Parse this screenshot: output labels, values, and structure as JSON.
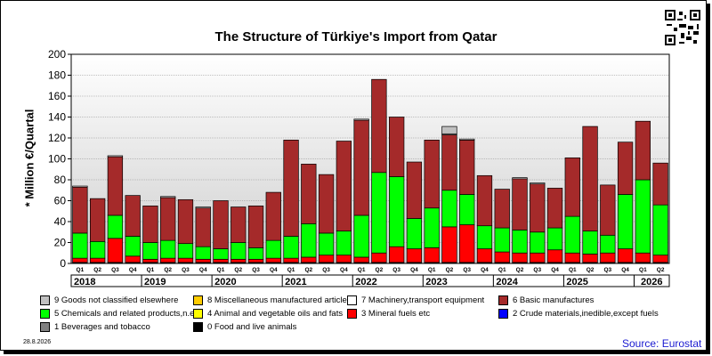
{
  "page": {
    "title": "The Structure of Türkiye's Import from Qatar",
    "date": "28.8.2026",
    "source": "Source: Eurostat"
  },
  "chart_data": {
    "type": "bar",
    "stacked": true,
    "title": "The Structure of Türkiye's Import from Qatar",
    "ylabel": "* Million €/Quartal",
    "xlabel": "",
    "ylim": [
      0,
      200
    ],
    "yticks": [
      0,
      20,
      40,
      60,
      80,
      100,
      120,
      140,
      160,
      180,
      200
    ],
    "grid": true,
    "legend_position": "bottom",
    "categories": [
      "Q1",
      "Q2",
      "Q3",
      "Q4",
      "Q1",
      "Q2",
      "Q3",
      "Q4",
      "Q1",
      "Q2",
      "Q3",
      "Q4",
      "Q1",
      "Q2",
      "Q3",
      "Q4",
      "Q1",
      "Q2",
      "Q3",
      "Q4",
      "Q1",
      "Q2",
      "Q3",
      "Q4",
      "Q1",
      "Q2",
      "Q3",
      "Q4",
      "Q1",
      "Q2",
      "Q3",
      "Q4",
      "Q1",
      "Q2"
    ],
    "years": [
      {
        "label": "2018",
        "quarters": 4
      },
      {
        "label": "2019",
        "quarters": 4
      },
      {
        "label": "2020",
        "quarters": 4
      },
      {
        "label": "2021",
        "quarters": 4
      },
      {
        "label": "2022",
        "quarters": 4
      },
      {
        "label": "2023",
        "quarters": 4
      },
      {
        "label": "2024",
        "quarters": 4
      },
      {
        "label": "2025",
        "quarters": 4
      },
      {
        "label": "2026",
        "quarters": 2
      }
    ],
    "series": [
      {
        "name": "0 Food and live animals",
        "color": "#000000",
        "values": [
          1,
          1,
          1,
          1,
          1,
          1,
          1,
          1,
          1,
          1,
          1,
          1,
          1,
          1,
          1,
          1,
          1,
          1,
          1,
          1,
          1,
          1,
          1,
          1,
          1,
          1,
          1,
          1,
          1,
          1,
          1,
          1,
          1,
          1
        ]
      },
      {
        "name": "1 Beverages and tobacco",
        "color": "#808080",
        "values": [
          0,
          0,
          0,
          0,
          0,
          0,
          0,
          0,
          0,
          0,
          0,
          0,
          0,
          0,
          0,
          0,
          0,
          0,
          0,
          0,
          0,
          0,
          0,
          0,
          0,
          0,
          0,
          0,
          0,
          0,
          0,
          0,
          0,
          0
        ]
      },
      {
        "name": "2 Crude materials,inedible,except fuels",
        "color": "#0000ff",
        "values": [
          0,
          0,
          0,
          0,
          0,
          0,
          0,
          0,
          0,
          0,
          0,
          0,
          0,
          0,
          0,
          0,
          0,
          0,
          0,
          0,
          0,
          0,
          0,
          0,
          0,
          0,
          0,
          0,
          0,
          0,
          0,
          0,
          0,
          0
        ]
      },
      {
        "name": "3 Mineral fuels etc",
        "color": "#ff0000",
        "values": [
          4,
          4,
          23,
          6,
          3,
          4,
          4,
          3,
          3,
          3,
          3,
          4,
          4,
          5,
          7,
          7,
          5,
          9,
          15,
          13,
          14,
          34,
          36,
          13,
          10,
          9,
          9,
          12,
          9,
          8,
          9,
          13,
          9,
          7
        ]
      },
      {
        "name": "4 Animal and vegetable oils and fats",
        "color": "#ffff00",
        "values": [
          0,
          0,
          0,
          0,
          0,
          0,
          0,
          0,
          0,
          0,
          0,
          0,
          0,
          0,
          0,
          0,
          0,
          0,
          0,
          0,
          0,
          0,
          0,
          0,
          0,
          0,
          0,
          0,
          0,
          0,
          0,
          0,
          0,
          0
        ]
      },
      {
        "name": "5 Chemicals and related products,n.e.s.",
        "color": "#00ff00",
        "values": [
          24,
          16,
          22,
          19,
          16,
          17,
          14,
          12,
          10,
          16,
          11,
          17,
          21,
          32,
          21,
          23,
          40,
          77,
          67,
          29,
          38,
          35,
          29,
          22,
          23,
          22,
          20,
          21,
          35,
          22,
          17,
          52,
          70,
          48
        ]
      },
      {
        "name": "6 Basic manufactures",
        "color": "#a52a2a",
        "values": [
          44,
          41,
          56,
          39,
          35,
          41,
          42,
          37,
          46,
          34,
          40,
          46,
          92,
          57,
          56,
          86,
          91,
          89,
          57,
          54,
          65,
          53,
          52,
          48,
          37,
          49,
          46,
          38,
          56,
          100,
          48,
          50,
          56,
          40
        ]
      },
      {
        "name": "7 Machinery,transport equipment",
        "color": "#ffffff",
        "values": [
          1,
          0,
          1,
          0,
          0,
          1,
          0,
          1,
          0,
          0,
          0,
          0,
          0,
          0,
          0,
          0,
          1,
          0,
          0,
          0,
          0,
          1,
          1,
          0,
          0,
          1,
          1,
          0,
          0,
          0,
          0,
          0,
          0,
          0
        ]
      },
      {
        "name": "8 Miscellaneous manufactured articles",
        "color": "#ffcc00",
        "values": [
          0,
          0,
          0,
          0,
          0,
          0,
          0,
          0,
          0,
          0,
          0,
          0,
          0,
          0,
          0,
          0,
          0,
          0,
          0,
          0,
          0,
          0,
          0,
          0,
          0,
          0,
          0,
          0,
          0,
          0,
          0,
          0,
          0,
          0
        ]
      },
      {
        "name": "9 Goods not classified elsewhere",
        "color": "#c0c0c0",
        "values": [
          0,
          0,
          0,
          0,
          0,
          0,
          0,
          0,
          0,
          0,
          0,
          0,
          0,
          0,
          0,
          0,
          0,
          0,
          0,
          0,
          0,
          7,
          0,
          0,
          0,
          0,
          0,
          0,
          0,
          0,
          0,
          0,
          0,
          0
        ]
      }
    ]
  },
  "legend_order": [
    9,
    8,
    7,
    6,
    5,
    4,
    3,
    2,
    1,
    0
  ]
}
